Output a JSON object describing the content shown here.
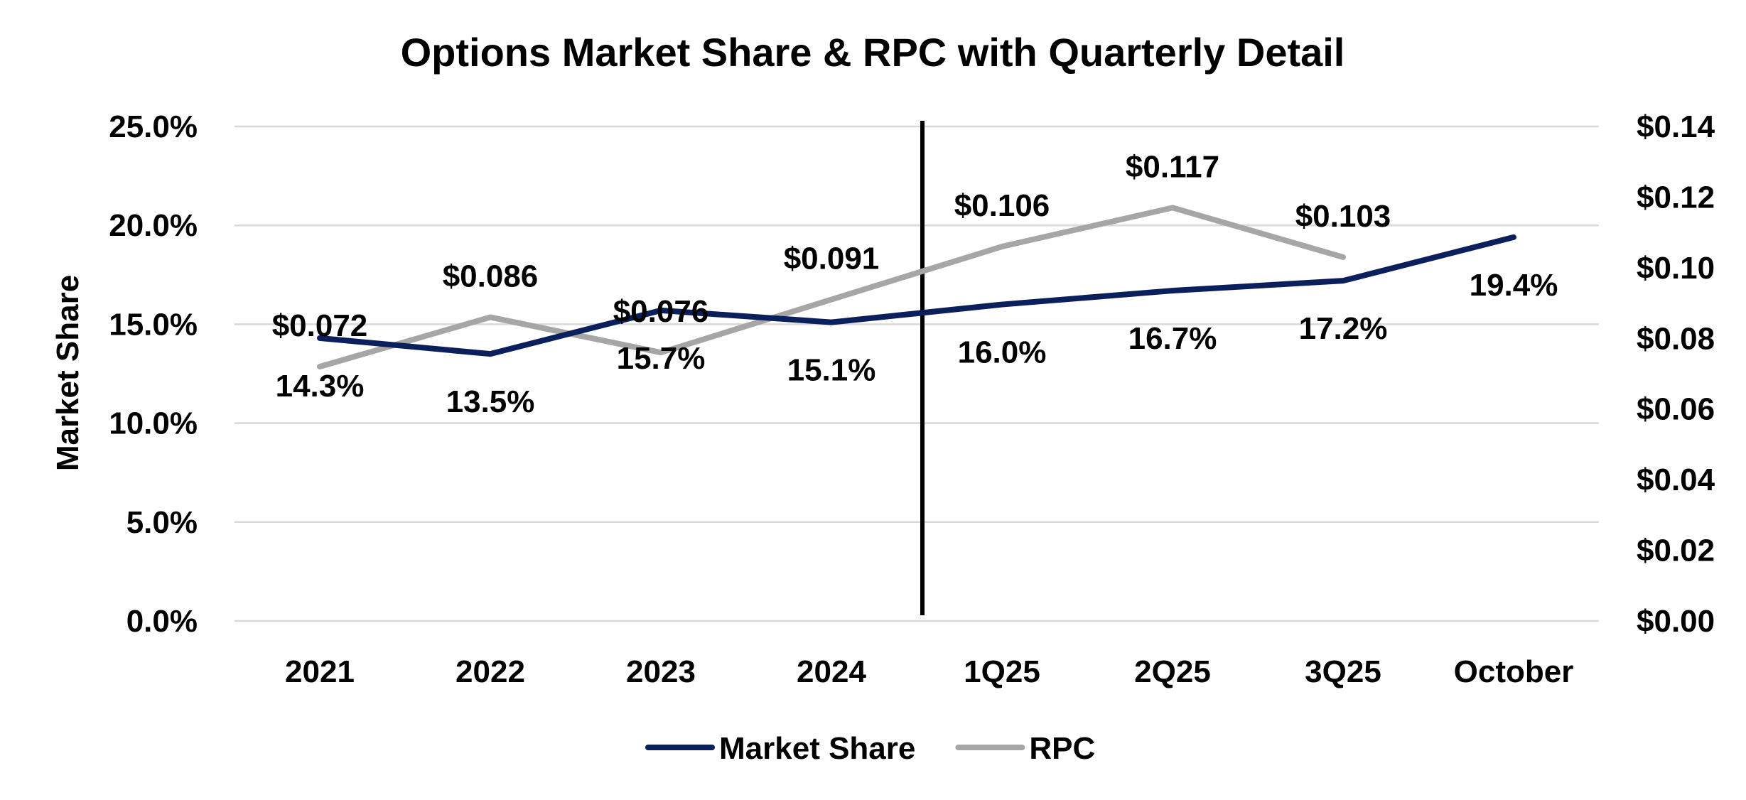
{
  "chart_data": {
    "type": "line",
    "title": "Options Market Share & RPC with Quarterly Detail",
    "ylabel": "Market Share",
    "y2label": "",
    "categories": [
      "2021",
      "2022",
      "2023",
      "2024",
      "1Q25",
      "2Q25",
      "3Q25",
      "October"
    ],
    "ylim": [
      0,
      25
    ],
    "y_ticks": [
      0,
      5,
      10,
      15,
      20,
      25
    ],
    "y_tick_labels": [
      "0.0%",
      "5.0%",
      "10.0%",
      "15.0%",
      "20.0%",
      "25.0%"
    ],
    "y2lim": [
      0,
      0.14
    ],
    "y2_ticks": [
      0,
      0.02,
      0.04,
      0.06,
      0.08,
      0.1,
      0.12,
      0.14
    ],
    "y2_tick_labels": [
      "$0.00",
      "$0.02",
      "$0.04",
      "$0.06",
      "$0.08",
      "$0.10",
      "$0.12",
      "$0.14"
    ],
    "grid": true,
    "legend_position": "bottom",
    "divider_after_category": "2024",
    "series": [
      {
        "name": "Market Share",
        "axis": "left",
        "color": "#0b1f5c",
        "values": [
          14.3,
          13.5,
          15.7,
          15.1,
          16.0,
          16.7,
          17.2,
          19.4
        ],
        "labels": [
          "14.3%",
          "13.5%",
          "15.7%",
          "15.1%",
          "16.0%",
          "16.7%",
          "17.2%",
          "19.4%"
        ]
      },
      {
        "name": "RPC",
        "axis": "right",
        "color": "#a6a6a6",
        "values": [
          0.072,
          0.086,
          0.076,
          0.091,
          0.106,
          0.117,
          0.103,
          null
        ],
        "labels": [
          "$0.072",
          "$0.086",
          "$0.076",
          "$0.091",
          "$0.106",
          "$0.117",
          "$0.103",
          null
        ]
      }
    ]
  }
}
